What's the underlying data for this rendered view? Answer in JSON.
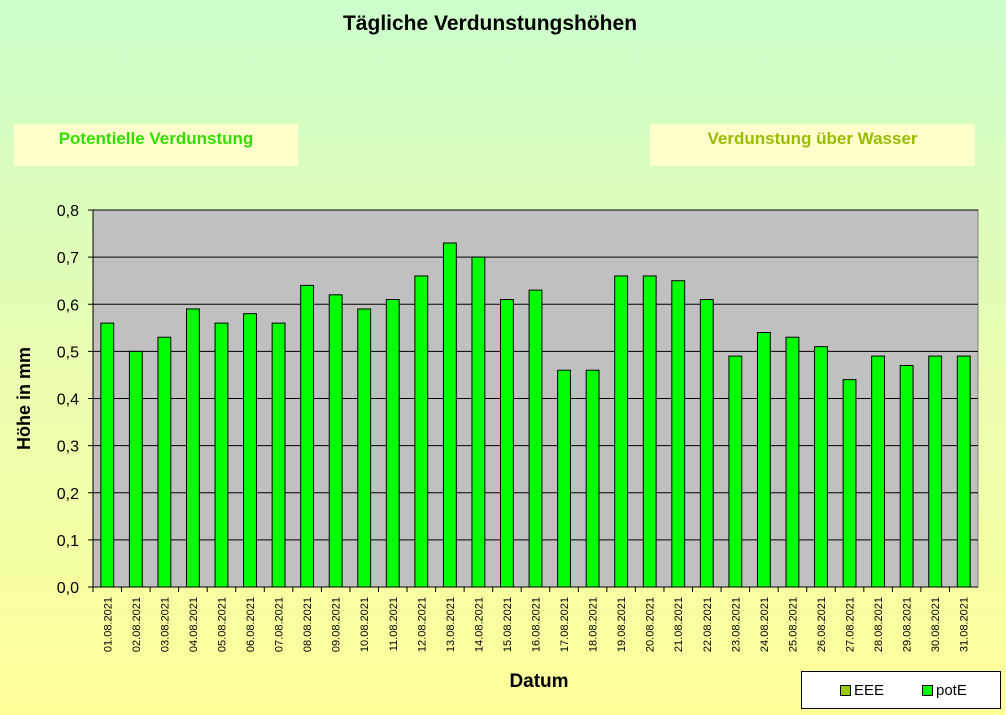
{
  "title": "Tägliche Verdunstungshöhen",
  "tabs": {
    "left": "Potentielle Verdunstung",
    "right": "Verdunstung über Wasser"
  },
  "colors": {
    "bar": "#00ff00",
    "bar_stroke": "#000000",
    "plot_bg": "#c0c0c0",
    "eee_swatch": "#99cc00",
    "pote_swatch": "#00ff00"
  },
  "legend": [
    {
      "name": "EEE",
      "color": "#99cc00"
    },
    {
      "name": "potE",
      "color": "#00ff00"
    }
  ],
  "chart_data": {
    "type": "bar",
    "title": "Tägliche Verdunstungshöhen",
    "xlabel": "Datum",
    "ylabel": "Höhe in mm",
    "ylim": [
      0,
      0.8
    ],
    "yticks": [
      "0,0",
      "0,1",
      "0,2",
      "0,3",
      "0,4",
      "0,5",
      "0,6",
      "0,7",
      "0,8"
    ],
    "grid": true,
    "legend_position": "bottom-right",
    "categories": [
      "01.08.2021",
      "02.08.2021",
      "03.08.2021",
      "04.08.2021",
      "05.08.2021",
      "06.08.2021",
      "07.08.2021",
      "08.08.2021",
      "09.08.2021",
      "10.08.2021",
      "11.08.2021",
      "12.08.2021",
      "13.08.2021",
      "14.08.2021",
      "15.08.2021",
      "16.08.2021",
      "17.08.2021",
      "18.08.2021",
      "19.08.2021",
      "20.08.2021",
      "21.08.2021",
      "22.08.2021",
      "23.08.2021",
      "24.08.2021",
      "25.08.2021",
      "26.08.2021",
      "27.08.2021",
      "28.08.2021",
      "29.08.2021",
      "30.08.2021",
      "31.08.2021"
    ],
    "series": [
      {
        "name": "potE",
        "values": [
          0.56,
          0.5,
          0.53,
          0.59,
          0.56,
          0.58,
          0.56,
          0.64,
          0.62,
          0.59,
          0.61,
          0.66,
          0.73,
          0.7,
          0.61,
          0.63,
          0.46,
          0.46,
          0.66,
          0.66,
          0.65,
          0.61,
          0.49,
          0.54,
          0.53,
          0.51,
          0.44,
          0.49,
          0.47,
          0.49,
          0.49
        ]
      }
    ]
  }
}
